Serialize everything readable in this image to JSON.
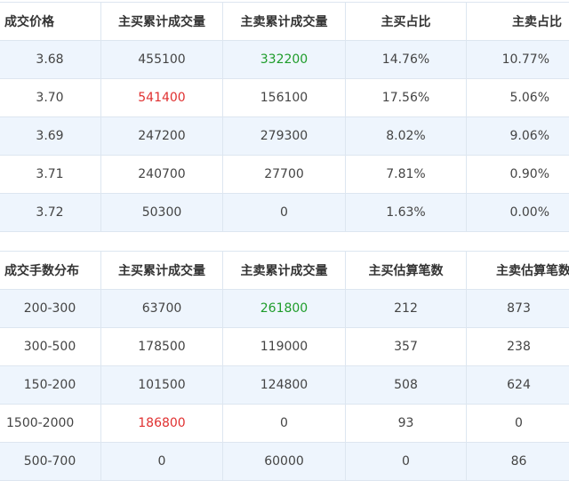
{
  "price_table": {
    "headers": [
      "成交价格",
      "主买累计成交量",
      "主卖累计成交量",
      "主买占比",
      "主卖占比"
    ],
    "rows": [
      [
        "3.68",
        "455100",
        "332200",
        "14.76%",
        "10.77%"
      ],
      [
        "3.70",
        "541400",
        "156100",
        "17.56%",
        "5.06%"
      ],
      [
        "3.69",
        "247200",
        "279300",
        "8.02%",
        "9.06%"
      ],
      [
        "3.71",
        "240700",
        "27700",
        "7.81%",
        "0.90%"
      ],
      [
        "3.72",
        "50300",
        "0",
        "1.63%",
        "0.00%"
      ]
    ]
  },
  "volume_table": {
    "headers": [
      "成交手数分布",
      "主买累计成交量",
      "主卖累计成交量",
      "主买估算笔数",
      "主卖估算笔数"
    ],
    "rows": [
      [
        "200-300",
        "63700",
        "261800",
        "212",
        "873"
      ],
      [
        "300-500",
        "178500",
        "119000",
        "357",
        "238"
      ],
      [
        "150-200",
        "101500",
        "124800",
        "508",
        "624"
      ],
      [
        "1500-2000",
        "186800",
        "0",
        "93",
        "0"
      ],
      [
        "500-700",
        "0",
        "60000",
        "0",
        "86"
      ]
    ]
  },
  "colors": {
    "up_red": "#e03131",
    "down_green": "#1e9c2a",
    "stripe_blue": "#eef5fd",
    "border": "#dde6f0"
  }
}
